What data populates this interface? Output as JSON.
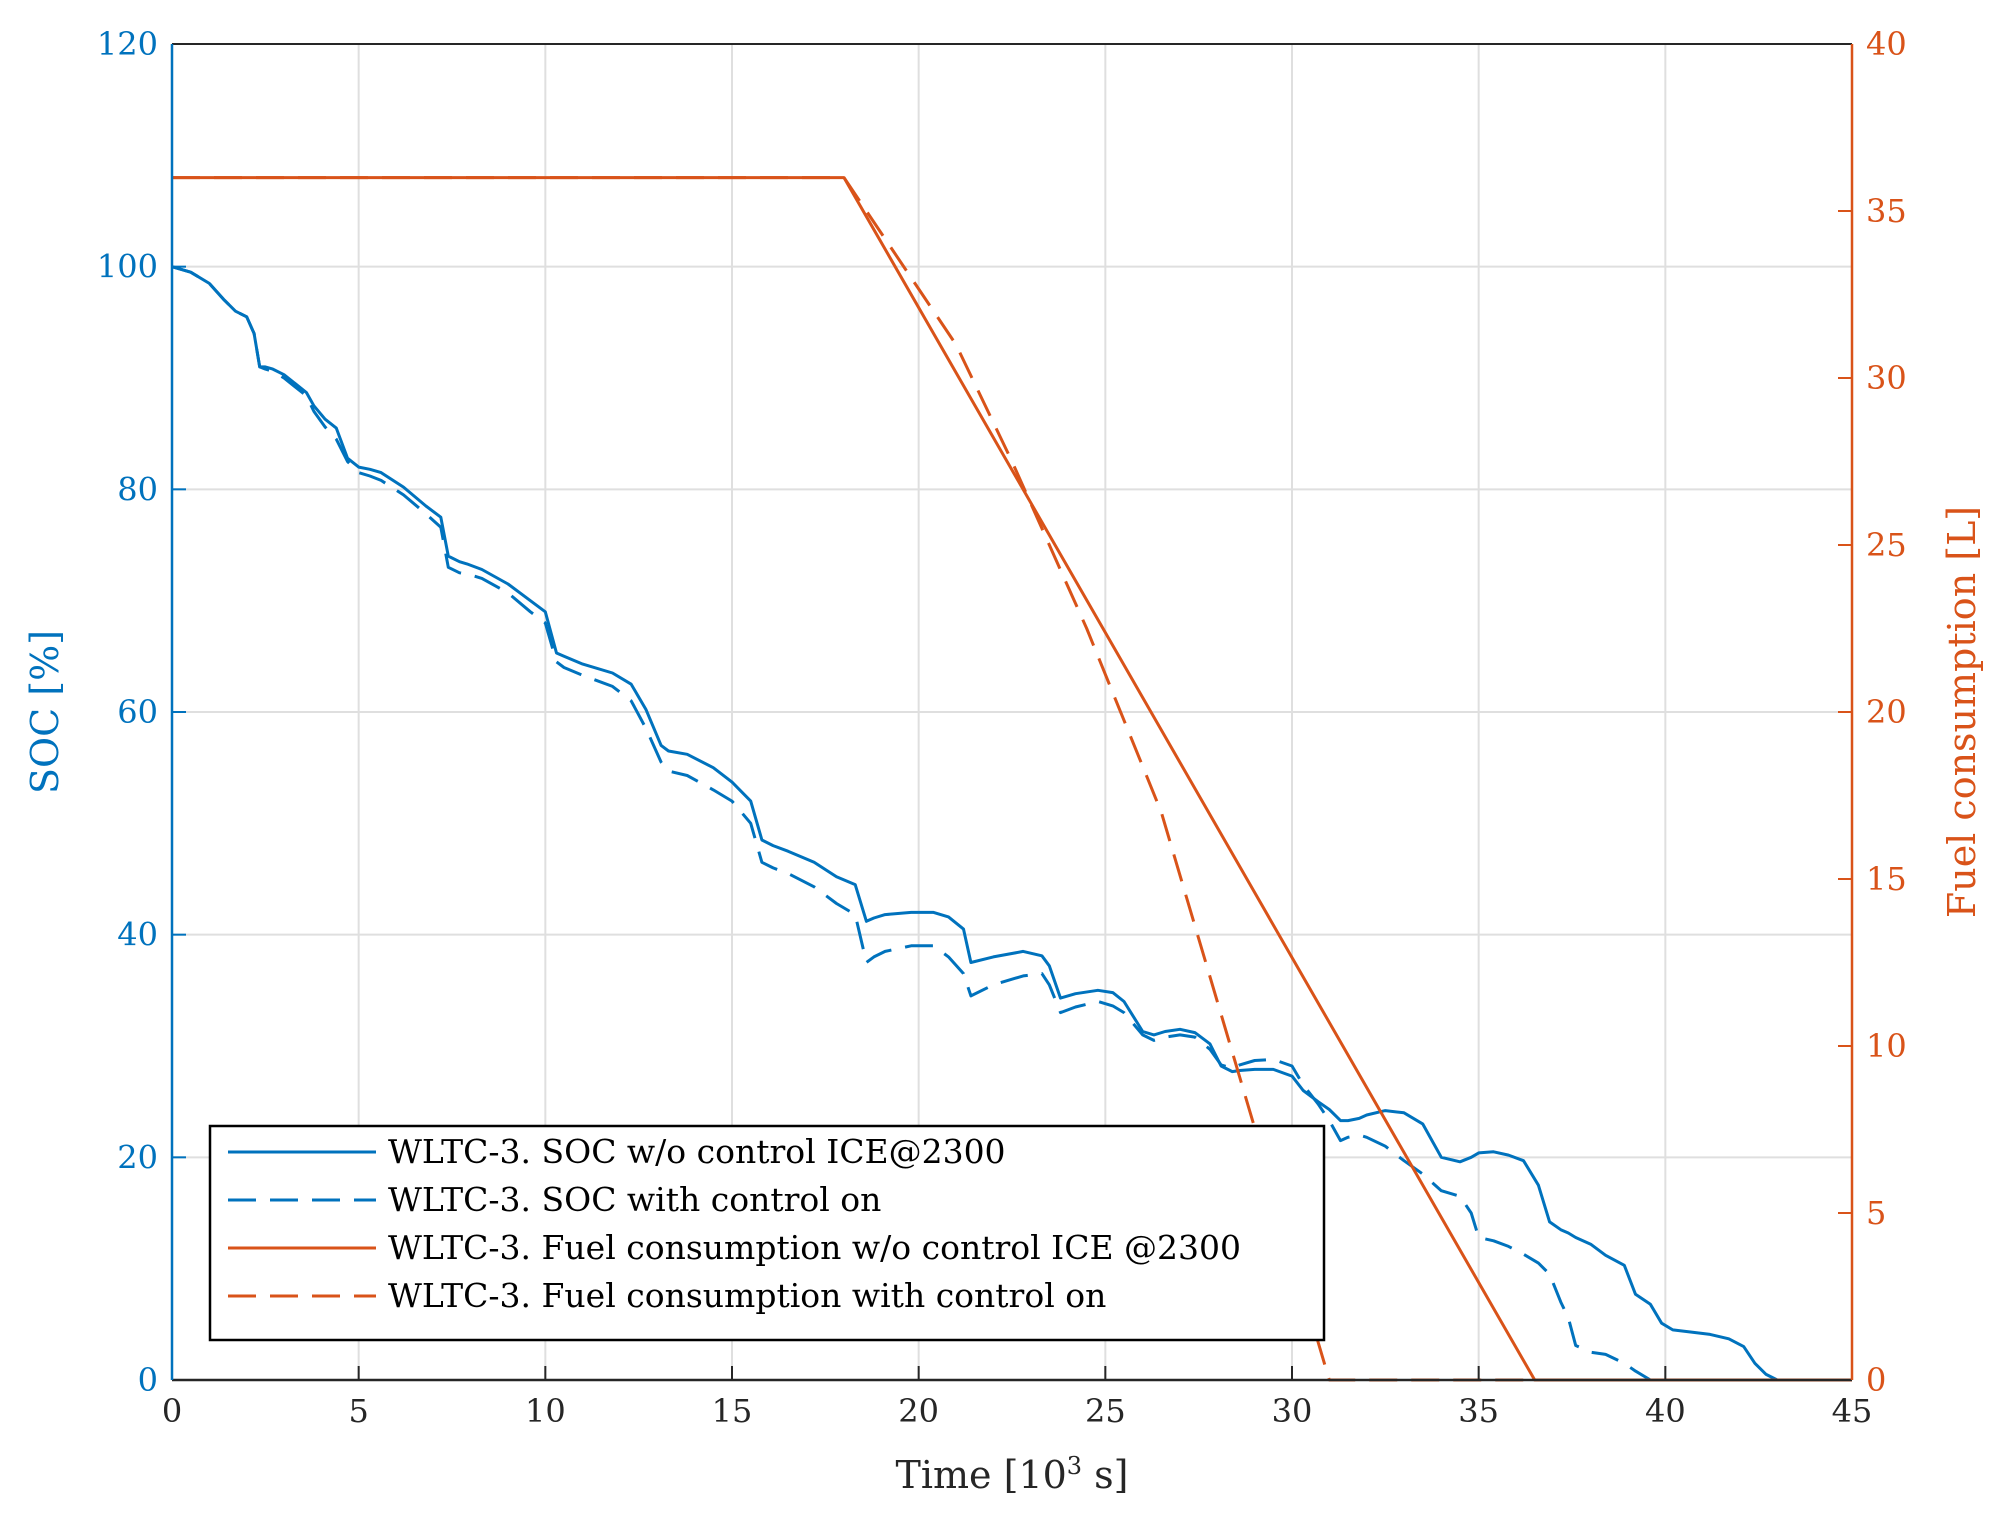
{
  "chart_data": {
    "type": "line",
    "xlabel_prefix": "Time [10",
    "xlabel_sup": "3",
    "xlabel_suffix": " s]",
    "ylabel_left": "SOC [%]",
    "ylabel_right": "Fuel consumption [L]",
    "xlim": [
      0,
      45
    ],
    "ylim_left": [
      0,
      120
    ],
    "ylim_right": [
      0,
      40
    ],
    "xticks": [
      "0",
      "5",
      "10",
      "15",
      "20",
      "25",
      "30",
      "35",
      "40",
      "45"
    ],
    "yticks_left": [
      "0",
      "20",
      "40",
      "60",
      "80",
      "100",
      "120"
    ],
    "yticks_right": [
      "0",
      "5",
      "10",
      "15",
      "20",
      "25",
      "30",
      "35",
      "40"
    ],
    "grid": true,
    "legend_position": "bottom-left",
    "colors": {
      "soc": "#0072BD",
      "fuel": "#D95319"
    },
    "series": [
      {
        "name": "WLTC-3. SOC w/o control ICE@2300",
        "axis": "left",
        "color": "#0072BD",
        "dash": "solid",
        "x": [
          0,
          0.5,
          1,
          1.4,
          1.7,
          2.0,
          2.2,
          2.35,
          2.5,
          2.7,
          3.0,
          3.3,
          3.6,
          3.8,
          4.1,
          4.4,
          4.7,
          5.0,
          5.3,
          5.6,
          6.2,
          6.8,
          7.2,
          7.4,
          7.7,
          7.9,
          8.3,
          9.0,
          9.6,
          10.0,
          10.3,
          10.5,
          11.0,
          11.8,
          12.3,
          12.7,
          13.1,
          13.3,
          13.8,
          14.5,
          15.0,
          15.5,
          15.8,
          16.1,
          16.5,
          17.2,
          17.8,
          18.3,
          18.6,
          18.8,
          19.1,
          19.8,
          20.4,
          20.8,
          21.2,
          21.4,
          22.0,
          22.8,
          23.3,
          23.5,
          23.8,
          24.2,
          24.8,
          25.2,
          25.5,
          26.0,
          26.3,
          26.6,
          27.0,
          27.4,
          27.8,
          28.1,
          28.4,
          28.6,
          29.0,
          29.5,
          30.0,
          30.3,
          30.7,
          31.0,
          31.3,
          31.5,
          31.8,
          32.0,
          32.5,
          33.0,
          33.5,
          34.0,
          34.5,
          34.8,
          35.0,
          35.4,
          35.8,
          36.2,
          36.6,
          36.9,
          37.2,
          37.4,
          37.6,
          38.0,
          38.4,
          38.9,
          39.2,
          39.6,
          39.9,
          40.2,
          40.7,
          41.2,
          41.7,
          42.1,
          42.4,
          42.7,
          43.0,
          44.0,
          45.0
        ],
        "y": [
          100,
          99.5,
          98.5,
          97,
          96,
          95.5,
          94,
          91,
          91,
          90.8,
          90.3,
          89.5,
          88.7,
          87.5,
          86.3,
          85.5,
          82.8,
          82,
          81.8,
          81.5,
          80.2,
          78.5,
          77.5,
          74,
          73.5,
          73.3,
          72.8,
          71.5,
          70,
          69,
          65.3,
          65,
          64.3,
          63.5,
          62.5,
          60.2,
          57,
          56.5,
          56.2,
          55,
          53.7,
          52,
          48.5,
          48,
          47.5,
          46.5,
          45.2,
          44.5,
          41.2,
          41.5,
          41.8,
          42,
          42,
          41.6,
          40.5,
          37.5,
          38,
          38.5,
          38.1,
          37.2,
          34.3,
          34.7,
          35,
          34.8,
          34,
          31.3,
          31,
          31.3,
          31.5,
          31.2,
          30.2,
          28.2,
          27.7,
          27.8,
          27.9,
          27.9,
          27.3,
          26,
          25,
          24.3,
          23.3,
          23.3,
          23.5,
          23.8,
          24.2,
          24,
          23,
          20,
          19.6,
          20,
          20.4,
          20.5,
          20.2,
          19.7,
          17.5,
          14.2,
          13.5,
          13.2,
          12.8,
          12.2,
          11.2,
          10.3,
          7.7,
          6.8,
          5.1,
          4.5,
          4.3,
          4.1,
          3.7,
          3.0,
          1.5,
          0.5,
          0,
          0,
          0
        ]
      },
      {
        "name": "WLTC-3. SOC with control on",
        "axis": "left",
        "color": "#0072BD",
        "dash": "dashed",
        "x": [
          0,
          0.5,
          1,
          1.4,
          1.7,
          2.0,
          2.2,
          2.35,
          2.5,
          2.7,
          3.0,
          3.3,
          3.6,
          3.8,
          4.1,
          4.4,
          4.7,
          5.0,
          5.3,
          5.6,
          6.2,
          6.8,
          7.2,
          7.4,
          7.7,
          7.9,
          8.3,
          9.0,
          9.6,
          10.0,
          10.3,
          10.5,
          11.0,
          11.8,
          12.3,
          12.7,
          13.1,
          13.3,
          13.8,
          14.5,
          15.0,
          15.5,
          15.8,
          16.1,
          16.5,
          17.2,
          17.8,
          18.3,
          18.6,
          18.8,
          19.1,
          19.8,
          20.4,
          20.8,
          21.2,
          21.4,
          22.0,
          22.8,
          23.3,
          23.5,
          23.8,
          24.2,
          24.8,
          25.2,
          25.5,
          26.0,
          26.3,
          26.6,
          27.0,
          27.4,
          27.8,
          28.1,
          28.4,
          28.6,
          29.0,
          29.5,
          30.0,
          30.3,
          30.7,
          31.0,
          31.3,
          31.5,
          31.8,
          32.0,
          32.5,
          33.0,
          33.5,
          34.0,
          34.5,
          34.8,
          35.0,
          35.4,
          35.8,
          36.2,
          36.6,
          36.9,
          37.2,
          37.4,
          37.6,
          38.0,
          38.4,
          38.9,
          39.2,
          39.6
        ],
        "y": [
          100,
          99.5,
          98.5,
          97,
          96,
          95.5,
          94,
          91,
          90.8,
          90.6,
          90,
          89.2,
          88.4,
          87,
          85.6,
          84.5,
          82.5,
          81.5,
          81.2,
          80.8,
          79.5,
          77.8,
          76.6,
          73,
          72.5,
          72.4,
          72,
          70.7,
          69,
          68,
          64.5,
          64,
          63.3,
          62.3,
          61,
          58.5,
          55.5,
          54.7,
          54.3,
          53,
          52,
          50,
          46.5,
          46,
          45.5,
          44.3,
          42.8,
          41.8,
          37.5,
          38,
          38.5,
          39,
          39,
          38,
          36.5,
          34.5,
          35.5,
          36.3,
          36.5,
          35.5,
          33,
          33.5,
          34,
          33.6,
          33,
          31,
          30.5,
          30.8,
          31,
          30.8,
          29.7,
          28.3,
          28,
          28.3,
          28.7,
          28.8,
          28.2,
          26.5,
          24.8,
          23.3,
          21.5,
          21.8,
          22,
          21.8,
          21,
          19.7,
          18.5,
          17,
          16.5,
          15,
          12.8,
          12.5,
          12,
          11.3,
          10.5,
          9.5,
          7,
          5.6,
          3.1,
          2.5,
          2.3,
          1.5,
          0.8,
          0
        ]
      },
      {
        "name": "WLTC-3. Fuel consumption w/o control ICE @2300",
        "axis": "right",
        "color": "#D95319",
        "dash": "solid",
        "x": [
          0,
          18,
          36.5,
          45
        ],
        "y": [
          36,
          36,
          0,
          0
        ]
      },
      {
        "name": "WLTC-3. Fuel consumption with control on",
        "axis": "right",
        "color": "#D95319",
        "dash": "dashed",
        "x": [
          0,
          18,
          21,
          22.5,
          24.5,
          26.5,
          31.0,
          45
        ],
        "y": [
          36,
          36,
          31,
          27.5,
          22.5,
          17,
          0,
          0
        ]
      }
    ]
  }
}
